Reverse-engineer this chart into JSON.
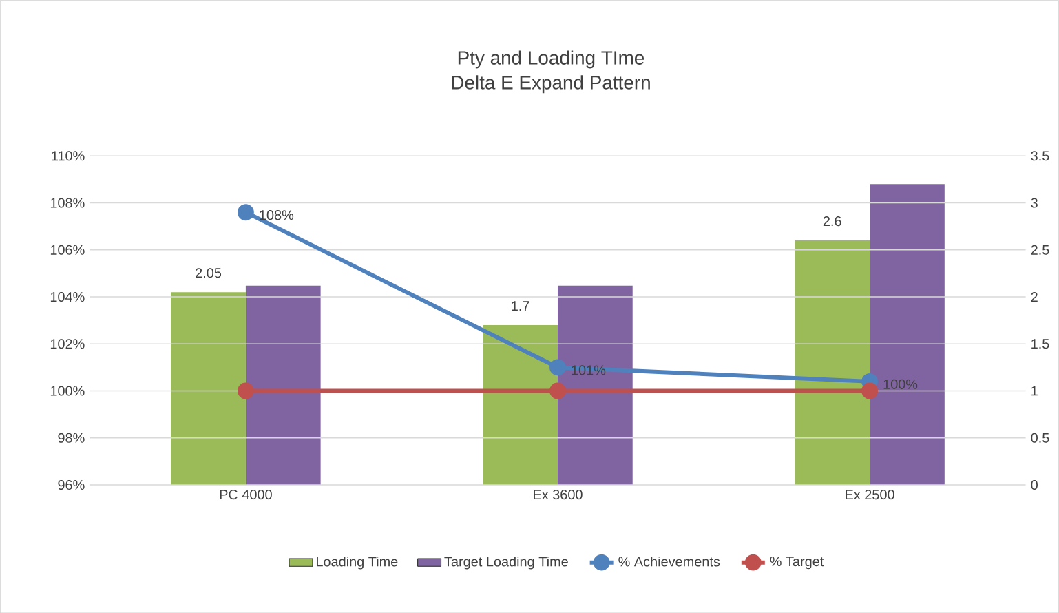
{
  "chart_data": {
    "type": "bar",
    "title": "Pty and Loading TIme",
    "subtitle": "Delta E Expand Pattern",
    "categories": [
      "PC 4000",
      "Ex 3600",
      "Ex 2500"
    ],
    "series": [
      {
        "name": "Loading Time",
        "axis": "y2",
        "color": "#9bbb59",
        "values": [
          2.05,
          1.7,
          2.6
        ],
        "value_labels": [
          "2.05",
          "1.7",
          "2.6"
        ]
      },
      {
        "name": "Target Loading Time",
        "axis": "y2",
        "color": "#8064a2",
        "values": [
          2.12,
          2.12,
          3.2
        ]
      },
      {
        "name": "% Achievements",
        "type": "line",
        "color": "#4f81bd",
        "values": [
          107.6,
          101.0,
          100.4
        ],
        "value_labels": [
          "108%",
          "101%",
          "100%"
        ]
      },
      {
        "name": "% Target",
        "type": "line",
        "color": "#c0504d",
        "values": [
          100,
          100,
          100
        ]
      }
    ],
    "ylim": [
      96,
      110
    ],
    "yticks": [
      {
        "value": 96,
        "label": "96%"
      },
      {
        "value": 98,
        "label": "98%"
      },
      {
        "value": 100,
        "label": "100%"
      },
      {
        "value": 102,
        "label": "102%"
      },
      {
        "value": 104,
        "label": "104%"
      },
      {
        "value": 106,
        "label": "106%"
      },
      {
        "value": 108,
        "label": "108%"
      },
      {
        "value": 110,
        "label": "110%"
      }
    ],
    "y2lim": [
      0,
      3.5
    ],
    "y2ticks": [
      0,
      0.5,
      1,
      1.5,
      2,
      2.5,
      3,
      3.5
    ],
    "grid": "y",
    "legend": "bottom",
    "marker": "circle",
    "line_style": "solid"
  }
}
